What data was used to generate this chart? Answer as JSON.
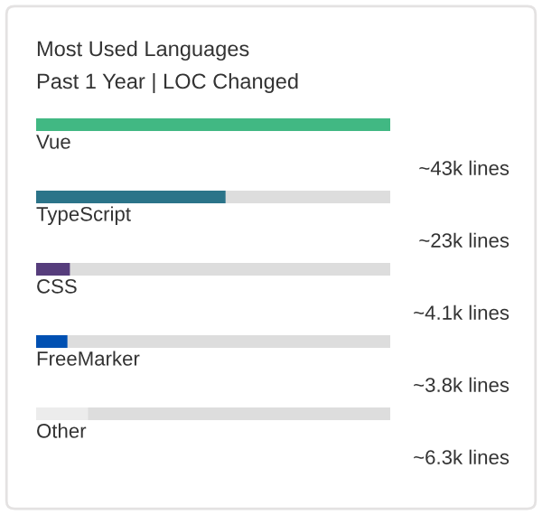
{
  "chart_data": {
    "type": "bar",
    "orientation": "horizontal",
    "title": "Most Used Languages",
    "subtitle": "Past 1 Year | LOC Changed",
    "categories": [
      "Vue",
      "TypeScript",
      "CSS",
      "FreeMarker",
      "Other"
    ],
    "values": [
      43,
      23,
      4.1,
      3.8,
      6.3
    ],
    "colors": [
      "#41b883",
      "#2b7489",
      "#563d7c",
      "#0050b2",
      "#ececec"
    ],
    "value_labels": [
      "~43k lines",
      "~23k lines",
      "~4.1k lines",
      "~3.8k lines",
      "~6.3k lines"
    ]
  }
}
